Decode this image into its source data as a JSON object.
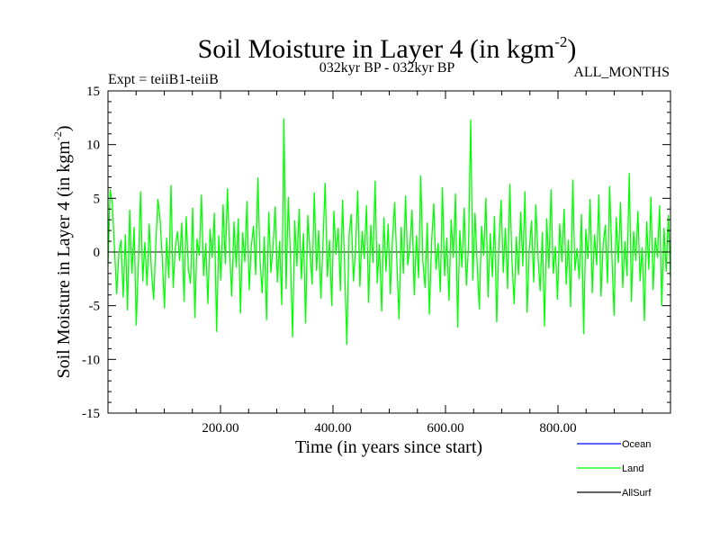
{
  "chart_data": {
    "type": "line",
    "title": "Soil Moisture in Layer 4 (in kgm",
    "title_exp": "-2",
    "title_close": ")",
    "subtitle_left": "Expt = teiiB1-teiiB",
    "subtitle_center": "032kyr BP - 032kyr BP",
    "subtitle_right": "ALL_MONTHS",
    "xlabel": "Time (in years since start)",
    "ylabel": "Soil Moisture in Layer 4 (in kgm",
    "ylabel_exp": "-2",
    "ylabel_close": ")",
    "xlim": [
      0,
      1000
    ],
    "ylim": [
      -15,
      15
    ],
    "x_ticks": [
      200,
      400,
      600,
      800
    ],
    "x_tick_labels": [
      "200.00",
      "400.00",
      "600.00",
      "800.00"
    ],
    "y_ticks": [
      -15,
      -10,
      -5,
      0,
      5,
      10,
      15
    ],
    "y_tick_labels": [
      "-15",
      "-10",
      "-5",
      "0",
      "5",
      "10",
      "15"
    ],
    "legend_position": "bottom-right",
    "series": [
      {
        "name": "Ocean",
        "color": "#0000ff",
        "values": []
      },
      {
        "name": "Land",
        "color": "#00ff00",
        "values": [
          -1.2,
          5.8,
          4.6,
          0.3,
          -3.9,
          -0.1,
          1.1,
          -4.2,
          1.6,
          -5.4,
          3.9,
          -2.0,
          2.3,
          -6.8,
          -1.0,
          5.6,
          -2.7,
          0.9,
          -3.1,
          2.6,
          -1.8,
          -4.4,
          0.7,
          4.9,
          3.0,
          -0.6,
          -5.2,
          1.3,
          -2.4,
          6.2,
          -3.3,
          0.4,
          1.9,
          -0.8,
          2.7,
          -4.6,
          3.3,
          -1.6,
          -2.9,
          4.1,
          -6.1,
          1.2,
          -0.3,
          5.3,
          -2.2,
          0.8,
          -4.8,
          2.1,
          -0.5,
          3.6,
          -7.4,
          1.5,
          -2.6,
          4.4,
          -1.1,
          5.9,
          0.2,
          -4.1,
          2.8,
          -1.4,
          3.1,
          -5.7,
          1.8,
          -0.9,
          4.7,
          -3.5,
          0.6,
          2.4,
          -2.1,
          6.9,
          -0.7,
          -3.8,
          1.4,
          -6.3,
          3.7,
          -1.9,
          0.5,
          4.2,
          -2.8,
          1.0,
          -4.9,
          12.4,
          -3.4,
          5.1,
          -0.4,
          -7.9,
          2.9,
          -1.3,
          4.0,
          -2.5,
          1.7,
          -6.6,
          3.4,
          0.1,
          -3.0,
          5.5,
          -1.7,
          2.0,
          -4.3,
          0.9,
          6.4,
          -2.3,
          1.1,
          -5.0,
          3.8,
          -0.2,
          2.2,
          -3.6,
          4.8,
          -1.5,
          -8.6,
          1.6,
          3.5,
          -2.7,
          0.3,
          5.7,
          -3.2,
          1.9,
          -0.6,
          4.3,
          -4.7,
          2.5,
          -1.0,
          6.6,
          -2.9,
          0.7,
          -5.5,
          3.2,
          -1.8,
          2.6,
          -3.9,
          1.2,
          4.6,
          -0.8,
          -6.2,
          2.3,
          -2.0,
          5.2,
          -1.2,
          0.4,
          3.9,
          -4.0,
          1.5,
          -2.4,
          7.1,
          -0.9,
          -3.3,
          2.7,
          -5.8,
          1.0,
          4.5,
          -1.6,
          0.8,
          -3.7,
          6.0,
          -2.2,
          1.3,
          -4.5,
          3.0,
          -0.5,
          5.4,
          -7.0,
          2.0,
          -1.4,
          4.1,
          -3.1,
          0.6,
          12.3,
          -2.6,
          3.6,
          -1.1,
          -5.3,
          2.4,
          -0.3,
          5.0,
          -4.2,
          1.7,
          -2.3,
          3.3,
          -6.5,
          0.9,
          4.8,
          -1.9,
          2.2,
          -3.4,
          6.3,
          -0.7,
          -4.8,
          1.4,
          -2.1,
          3.7,
          -1.3,
          5.6,
          -5.6,
          0.2,
          2.9,
          -2.8,
          4.4,
          -0.4,
          -3.6,
          1.8,
          -6.9,
          3.1,
          -1.5,
          5.8,
          -2.0,
          0.5,
          -4.4,
          2.6,
          -0.9,
          4.0,
          -3.0,
          1.1,
          -5.1,
          6.7,
          -1.7,
          0.3,
          -2.5,
          3.5,
          -7.6,
          2.1,
          -0.6,
          4.9,
          -3.8,
          1.6,
          -1.2,
          5.3,
          -4.1,
          0.7,
          2.5,
          -2.9,
          6.1,
          -0.2,
          -5.9,
          3.2,
          -1.0,
          4.6,
          -3.3,
          1.0,
          -2.2,
          7.3,
          -4.6,
          1.9,
          -0.8,
          3.8,
          -2.7,
          0.4,
          -6.4,
          2.8,
          -1.6,
          5.1,
          -3.5,
          1.3,
          -0.5,
          4.3,
          -5.0,
          2.2,
          -1.8,
          3.4,
          -2.4
        ]
      },
      {
        "name": "AllSurf",
        "color": "#000000",
        "values": []
      }
    ]
  }
}
